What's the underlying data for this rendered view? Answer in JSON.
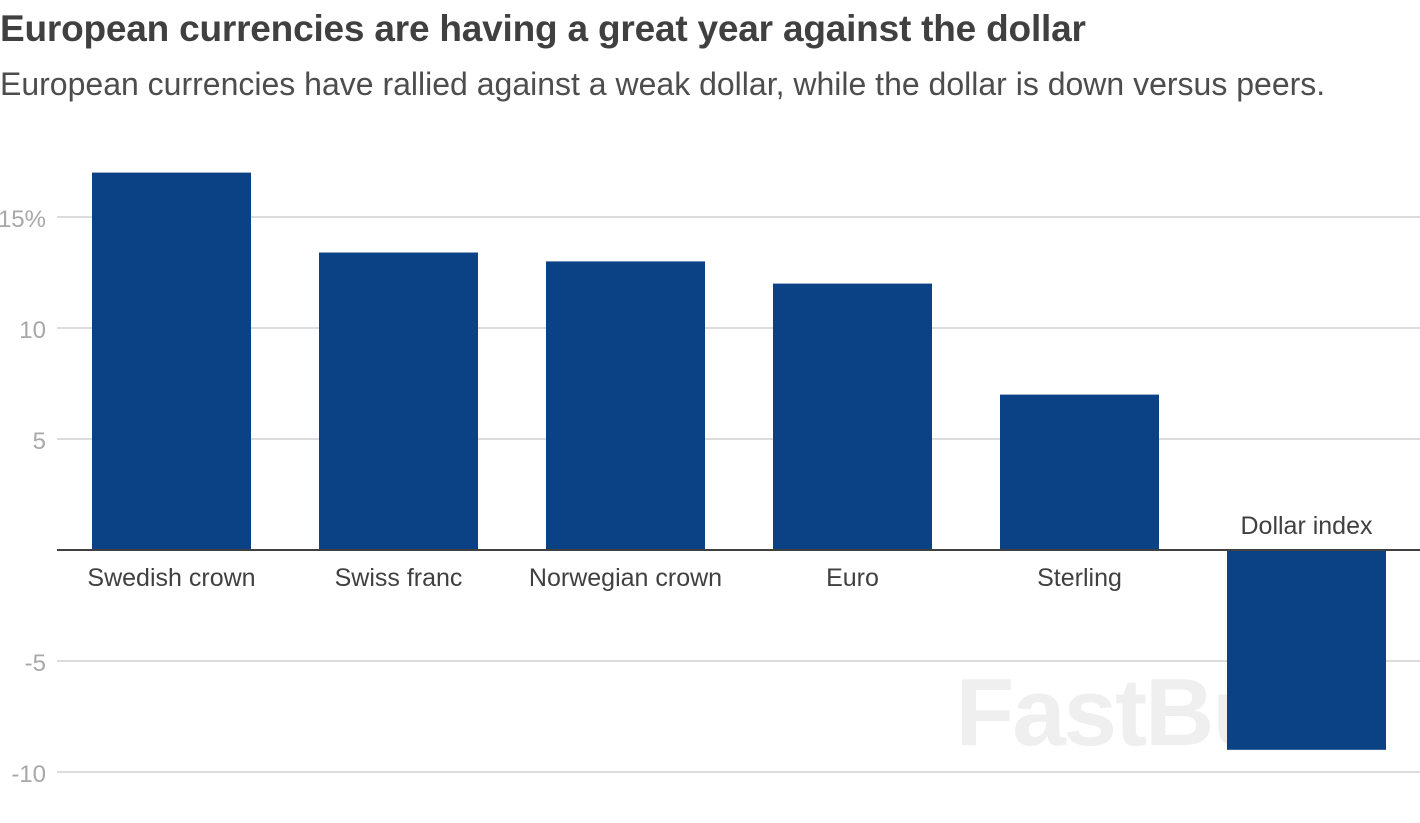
{
  "chart_data": {
    "type": "bar",
    "title": "European currencies are having a great year against the dollar",
    "subtitle": "European currencies have rallied against a weak dollar, while the dollar is down versus peers.",
    "categories": [
      "Swedish crown",
      "Swiss franc",
      "Norwegian crown",
      "Euro",
      "Sterling",
      "Dollar index"
    ],
    "values": [
      17,
      13.4,
      13,
      12,
      7,
      -9
    ],
    "unit": "%",
    "xlabel": "",
    "ylabel": "",
    "ylim": [
      -10,
      17
    ],
    "yticks": [
      15,
      10,
      5,
      -5,
      -10
    ],
    "ytick_labels": [
      "15%",
      "10",
      "5",
      "-5",
      "-10"
    ],
    "grid": true,
    "bar_color": "#0b4185"
  },
  "watermark": "FastBull",
  "colors": {
    "bar": "#0b4185",
    "gridline": "#d0d0d0",
    "baseline": "#404040",
    "tick_text": "#a8a8a8",
    "title_text": "#404040"
  }
}
